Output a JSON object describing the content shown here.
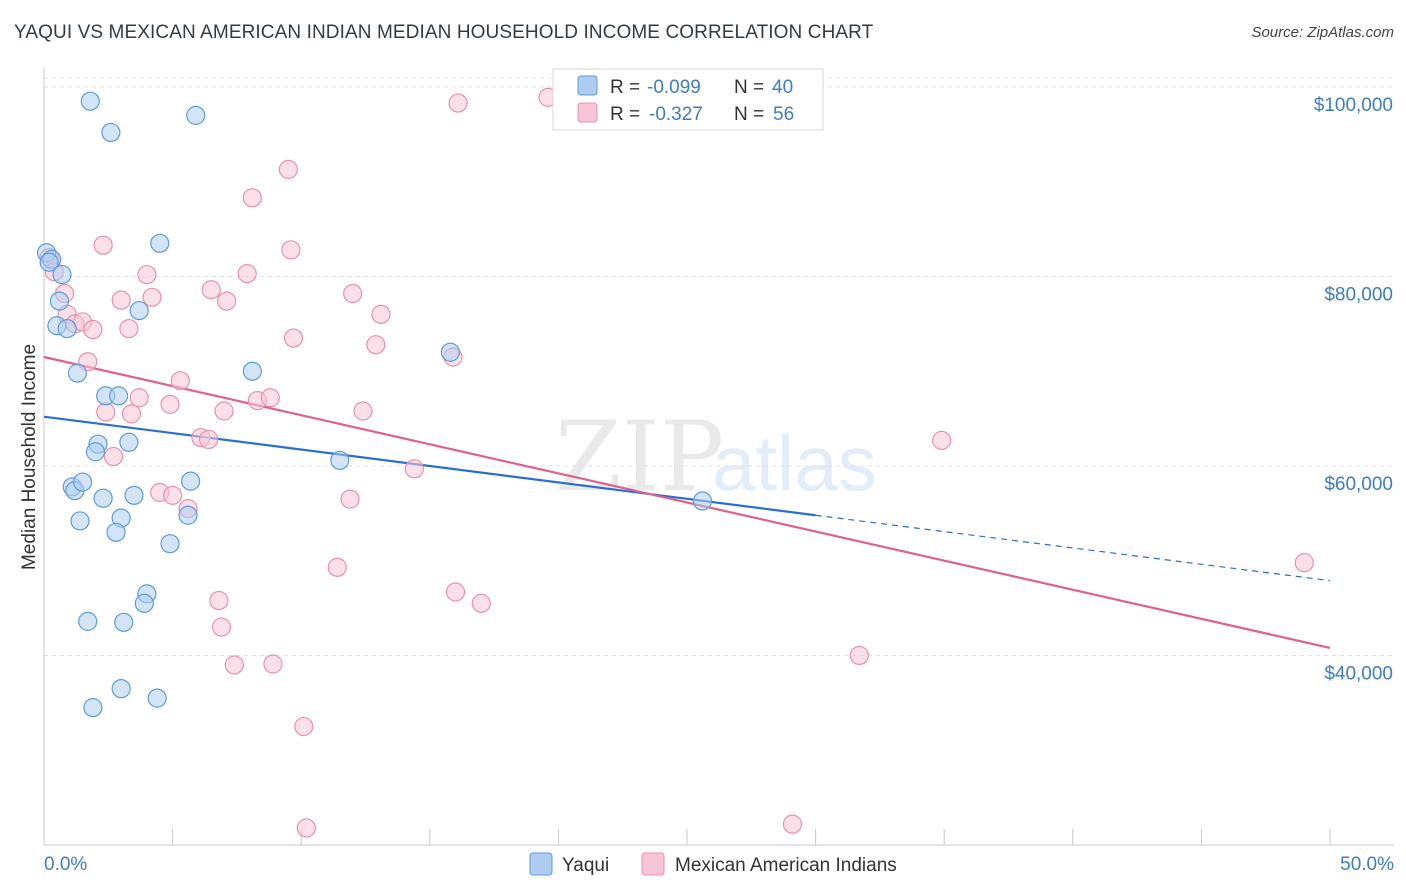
{
  "title": "YAQUI VS MEXICAN AMERICAN INDIAN MEDIAN HOUSEHOLD INCOME CORRELATION CHART",
  "source": "Source: ZipAtlas.com",
  "watermark": {
    "zip": "ZIP",
    "atlas": "atlas"
  },
  "colors": {
    "yaqui": "#5b9be0",
    "yaqui_fill": "#aecdf0",
    "mexican": "#ec8fae",
    "mexican_fill": "#f7c6d6",
    "yaqui_line": "#2a6fcf",
    "mexican_line": "#e0608f",
    "tick_text": "#3d7cc9"
  },
  "stats": {
    "r_label": "R =",
    "n_label": "N =",
    "yaqui": {
      "r": "-0.099",
      "n": "40"
    },
    "mexican": {
      "r": "-0.327",
      "n": "56"
    }
  },
  "chart_data": {
    "type": "scatter",
    "title": "YAQUI VS MEXICAN AMERICAN INDIAN MEDIAN HOUSEHOLD INCOME CORRELATION CHART",
    "xlabel": "",
    "ylabel": "Median Household Income",
    "xlim": [
      0,
      50
    ],
    "ylim": [
      20000,
      102000
    ],
    "x_tick_labels": [
      "0.0%",
      "50.0%"
    ],
    "y_ticks": [
      40000,
      60000,
      80000,
      100000
    ],
    "y_tick_labels": [
      "$40,000",
      "$60,000",
      "$80,000",
      "$100,000"
    ],
    "legend": [
      "Yaqui",
      "Mexican American Indians"
    ],
    "series": [
      {
        "name": "Yaqui",
        "points": [
          [
            0.1,
            82500
          ],
          [
            0.3,
            81800
          ],
          [
            0.7,
            80200
          ],
          [
            0.6,
            77400
          ],
          [
            0.5,
            74800
          ],
          [
            0.9,
            74500
          ],
          [
            1.3,
            69800
          ],
          [
            1.8,
            98500
          ],
          [
            2.6,
            95200
          ],
          [
            5.9,
            97000
          ],
          [
            4.5,
            83500
          ],
          [
            3.7,
            76400
          ],
          [
            2.4,
            67400
          ],
          [
            2.9,
            67400
          ],
          [
            2.1,
            62300
          ],
          [
            3.3,
            62500
          ],
          [
            2.0,
            61500
          ],
          [
            1.1,
            57800
          ],
          [
            1.2,
            57400
          ],
          [
            1.5,
            58300
          ],
          [
            2.3,
            56600
          ],
          [
            3.5,
            56900
          ],
          [
            5.7,
            58400
          ],
          [
            5.6,
            54800
          ],
          [
            1.4,
            54200
          ],
          [
            3.0,
            54500
          ],
          [
            2.8,
            53000
          ],
          [
            4.9,
            51800
          ],
          [
            4.0,
            46500
          ],
          [
            3.9,
            45500
          ],
          [
            1.7,
            43600
          ],
          [
            3.1,
            43500
          ],
          [
            3.0,
            36500
          ],
          [
            4.4,
            35500
          ],
          [
            1.9,
            34500
          ],
          [
            8.1,
            70000
          ],
          [
            11.5,
            60600
          ],
          [
            15.8,
            72000
          ],
          [
            25.6,
            56300
          ],
          [
            0.2,
            81500
          ]
        ]
      },
      {
        "name": "Mexican American Indians",
        "points": [
          [
            0.2,
            82000
          ],
          [
            0.4,
            80500
          ],
          [
            0.8,
            78200
          ],
          [
            0.9,
            76000
          ],
          [
            1.2,
            75000
          ],
          [
            1.5,
            75200
          ],
          [
            1.9,
            74400
          ],
          [
            1.7,
            71000
          ],
          [
            2.3,
            83300
          ],
          [
            3.0,
            77500
          ],
          [
            4.0,
            80200
          ],
          [
            4.2,
            77800
          ],
          [
            3.3,
            74500
          ],
          [
            2.4,
            65700
          ],
          [
            2.7,
            61000
          ],
          [
            3.4,
            65500
          ],
          [
            3.7,
            67200
          ],
          [
            4.9,
            66500
          ],
          [
            5.3,
            69000
          ],
          [
            6.5,
            78600
          ],
          [
            7.1,
            77400
          ],
          [
            7.9,
            80300
          ],
          [
            8.1,
            88300
          ],
          [
            9.5,
            91300
          ],
          [
            9.6,
            82800
          ],
          [
            9.7,
            73500
          ],
          [
            12.0,
            78200
          ],
          [
            12.9,
            72800
          ],
          [
            13.1,
            76000
          ],
          [
            12.4,
            65800
          ],
          [
            8.3,
            66900
          ],
          [
            8.8,
            67200
          ],
          [
            7.0,
            65800
          ],
          [
            6.1,
            63000
          ],
          [
            6.4,
            62800
          ],
          [
            4.5,
            57200
          ],
          [
            5.0,
            56900
          ],
          [
            5.6,
            55500
          ],
          [
            11.9,
            56500
          ],
          [
            14.4,
            59700
          ],
          [
            11.4,
            49300
          ],
          [
            6.8,
            45800
          ],
          [
            6.9,
            43000
          ],
          [
            7.4,
            39000
          ],
          [
            8.9,
            39100
          ],
          [
            10.1,
            32500
          ],
          [
            10.2,
            21800
          ],
          [
            15.9,
            71500
          ],
          [
            16.1,
            98300
          ],
          [
            19.6,
            98900
          ],
          [
            16.0,
            46700
          ],
          [
            17.0,
            45500
          ],
          [
            29.1,
            22200
          ],
          [
            31.7,
            40000
          ],
          [
            34.9,
            62700
          ],
          [
            49.0,
            49800
          ]
        ]
      }
    ],
    "trend_lines": [
      {
        "name": "Yaqui",
        "x": [
          0,
          30,
          50
        ],
        "y": [
          65200,
          54800,
          47900
        ],
        "dashed_after_x": 30
      },
      {
        "name": "Mexican American Indians",
        "x": [
          0,
          50
        ],
        "y": [
          71500,
          40800
        ]
      }
    ]
  },
  "legend_bottom": {
    "yaqui": "Yaqui",
    "mexican": "Mexican American Indians"
  }
}
